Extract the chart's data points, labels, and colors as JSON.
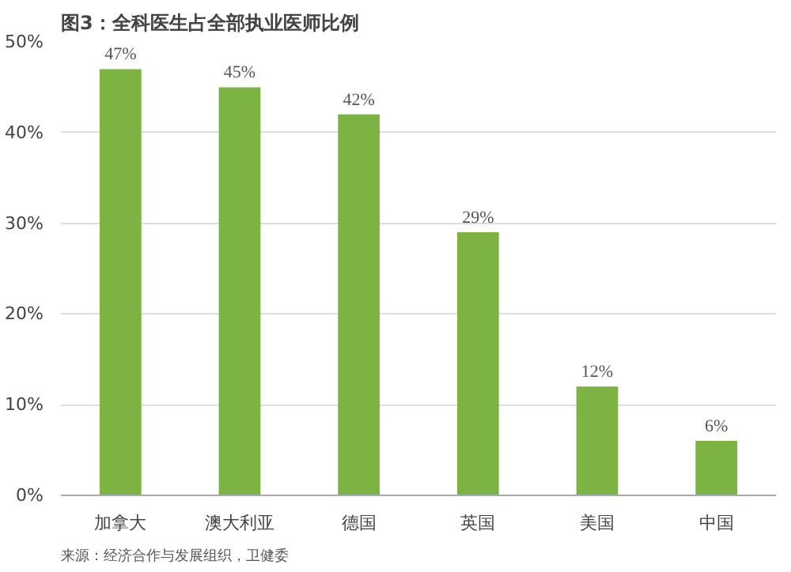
{
  "chart_data": {
    "type": "bar",
    "title": "图3：全科医生占全部执业医师比例",
    "categories": [
      "加拿大",
      "澳大利亚",
      "德国",
      "英国",
      "美国",
      "中国"
    ],
    "values": [
      47,
      45,
      42,
      29,
      12,
      6
    ],
    "value_labels": [
      "47%",
      "45%",
      "42%",
      "29%",
      "12%",
      "6%"
    ],
    "color": "#7cb342",
    "ylim": [
      0,
      50
    ],
    "yticks": [
      {
        "value": 0,
        "label": "0%"
      },
      {
        "value": 10,
        "label": "10%"
      },
      {
        "value": 20,
        "label": "20%"
      },
      {
        "value": 30,
        "label": "30%"
      },
      {
        "value": 40,
        "label": "40%"
      },
      {
        "value": 50,
        "label": "50%"
      }
    ],
    "grid": "y",
    "annotations": [
      "来源：经济合作与发展组织，卫健委"
    ]
  }
}
